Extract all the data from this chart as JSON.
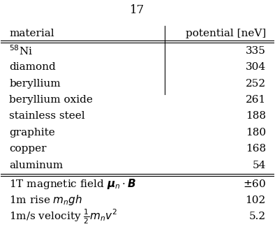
{
  "title": "17",
  "col1_header": "material",
  "col2_header": "potential [neV]",
  "rows_normal": [
    {
      "label": "$^{58}$Ni",
      "value": "335"
    },
    {
      "label": "diamond",
      "value": "304"
    },
    {
      "label": "beryllium",
      "value": "252"
    },
    {
      "label": "beryllium oxide",
      "value": "261"
    },
    {
      "label": "stainless steel",
      "value": "188"
    },
    {
      "label": "graphite",
      "value": "180"
    },
    {
      "label": "copper",
      "value": "168"
    },
    {
      "label": "aluminum",
      "value": "54"
    }
  ],
  "rows_extra": [
    {
      "label": "1T magnetic field $\\boldsymbol{\\mu}_n \\cdot \\boldsymbol{B}$",
      "value": "$\\pm$60"
    },
    {
      "label": "1m rise $m_n g h$",
      "value": "102"
    },
    {
      "label": "1m/s velocity $\\frac{1}{2}m_n v^2$",
      "value": "5.2"
    }
  ],
  "bg_color": "#ffffff",
  "text_color": "#000000",
  "fontsize": 11,
  "title_fontsize": 12
}
